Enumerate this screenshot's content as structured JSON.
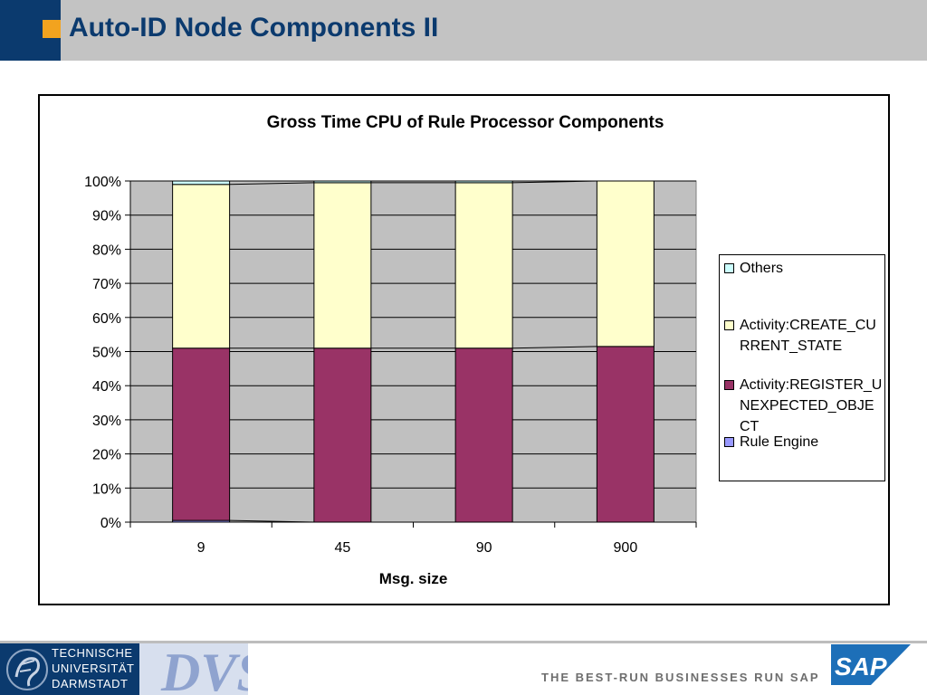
{
  "slide": {
    "title": "Auto-ID Node Components II"
  },
  "chart_data": {
    "type": "bar",
    "stacked": true,
    "percent": true,
    "title": "Gross Time CPU of Rule Processor Components",
    "xlabel": "Msg. size",
    "ylabel": "",
    "categories": [
      "9",
      "45",
      "90",
      "900"
    ],
    "ylim": [
      0,
      100
    ],
    "yticks": [
      "0%",
      "10%",
      "20%",
      "30%",
      "40%",
      "50%",
      "60%",
      "70%",
      "80%",
      "90%",
      "100%"
    ],
    "grid": true,
    "legend_position": "right",
    "series": [
      {
        "name": "Rule Engine",
        "color": "#9999ff",
        "values": [
          0.5,
          0.0,
          0.0,
          0.0
        ]
      },
      {
        "name": "Activity:REGISTER_UNEXPECTED_OBJECT",
        "color": "#993366",
        "values": [
          50.5,
          51.0,
          51.0,
          51.5
        ]
      },
      {
        "name": "Activity:CREATE_CURRENT_STATE",
        "color": "#ffffcc",
        "values": [
          48.0,
          48.5,
          48.5,
          48.5
        ]
      },
      {
        "name": "Others",
        "color": "#ccffff",
        "values": [
          1.0,
          0.5,
          0.5,
          0.0
        ]
      }
    ],
    "legend": [
      {
        "label": "Others",
        "color": "#ccffff"
      },
      {
        "label": "Activity:CREATE_CURRENT_STATE",
        "color": "#ffffcc"
      },
      {
        "label": "Activity:REGISTER_UNEXPECTED_OBJECT",
        "color": "#993366"
      },
      {
        "label": "Rule Engine",
        "color": "#9999ff"
      }
    ],
    "plot_background": "#c0c0c0"
  },
  "footer": {
    "university_lines": [
      "TECHNISCHE",
      "UNIVERSITÄT",
      "DARMSTADT"
    ],
    "dvs_logo_text": "DVS",
    "tagline": "THE BEST-RUN BUSINESSES RUN SAP",
    "sap_logo_text": "SAP"
  }
}
